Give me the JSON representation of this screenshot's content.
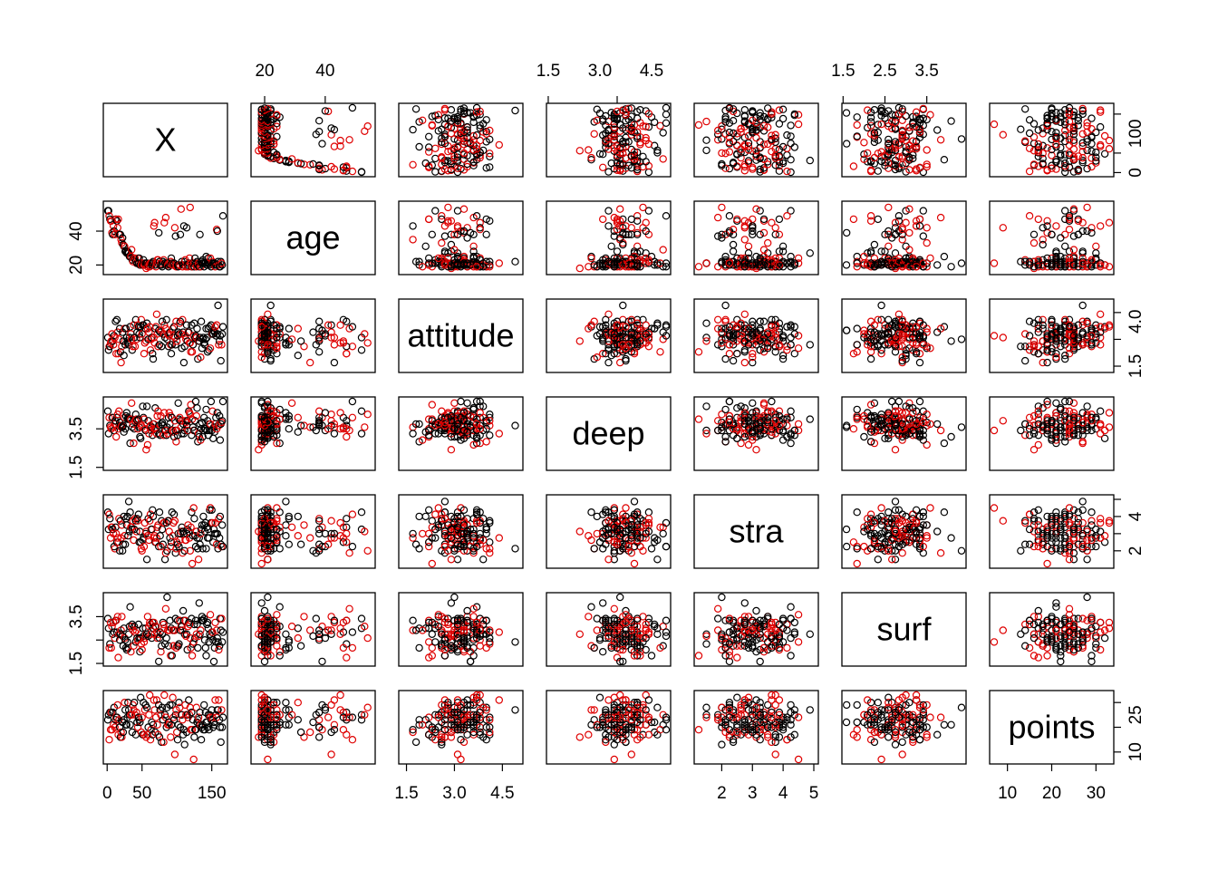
{
  "chart_data": {
    "type": "scatter",
    "kind": "scatterplot-matrix",
    "variables": [
      "X",
      "age",
      "attitude",
      "deep",
      "stra",
      "surf",
      "points"
    ],
    "ranges": {
      "X": [
        1,
        166
      ],
      "age": [
        17,
        55
      ],
      "attitude": [
        1.4,
        5.0
      ],
      "deep": [
        1.58,
        4.92
      ],
      "stra": [
        1.25,
        5.0
      ],
      "surf": [
        1.58,
        4.33
      ],
      "points": [
        7,
        33
      ]
    },
    "ticks": {
      "X": [
        0,
        50,
        150
      ],
      "age": [
        20,
        40
      ],
      "attitude": [
        1.5,
        3.0,
        4.5
      ],
      "deep": [
        1.5,
        3.5
      ],
      "stra": [
        2,
        3,
        4,
        5
      ],
      "surf": [
        1.5,
        2.5,
        3.5
      ],
      "points": [
        10,
        20,
        30
      ]
    },
    "tick_labels": {
      "top": [
        {
          "var": "age",
          "values": [
            "20",
            "40"
          ]
        },
        {
          "var": "deep",
          "values": [
            "1.5",
            "3.0",
            "4.5"
          ]
        },
        {
          "var": "surf",
          "values": [
            "1.5",
            "2.5",
            "3.5"
          ]
        }
      ],
      "bottom": [
        {
          "var": "X",
          "values": [
            "0",
            "50",
            "150"
          ]
        },
        {
          "var": "attitude",
          "values": [
            "1.5",
            "3.0",
            "4.5"
          ]
        },
        {
          "var": "stra",
          "values": [
            "2",
            "3",
            "4",
            "5"
          ]
        },
        {
          "var": "points",
          "values": [
            "10",
            "20",
            "30"
          ]
        }
      ],
      "left": [
        {
          "var": "age",
          "values": [
            "20",
            "40"
          ]
        },
        {
          "var": "deep",
          "values": [
            "1.5",
            "3.5"
          ]
        },
        {
          "var": "surf",
          "values": [
            "1.5",
            "3.5"
          ]
        }
      ],
      "right": [
        {
          "var": "X",
          "values": [
            "0",
            "100"
          ]
        },
        {
          "var": "attitude",
          "values": [
            "1.5",
            "4.0"
          ]
        },
        {
          "var": "stra",
          "values": [
            "2",
            "4"
          ]
        },
        {
          "var": "points",
          "values": [
            "10",
            "25"
          ]
        }
      ]
    },
    "groups": [
      {
        "color": "#000000"
      },
      {
        "color": "#DF0000"
      }
    ],
    "n_points": 166,
    "grid": false,
    "legend": "none"
  }
}
